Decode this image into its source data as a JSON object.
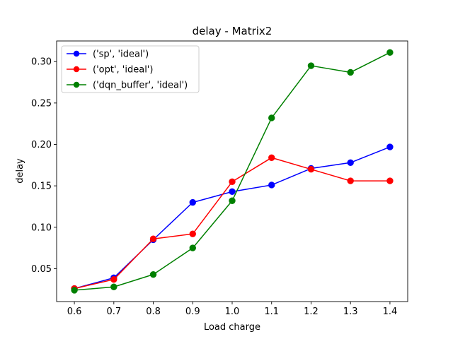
{
  "chart_data": {
    "type": "line",
    "title": "delay - Matrix2",
    "xlabel": "Load charge",
    "ylabel": "delay",
    "x": [
      0.6,
      0.7,
      0.8,
      0.9,
      1.0,
      1.1,
      1.2,
      1.3,
      1.4
    ],
    "xlim": [
      0.555,
      1.445
    ],
    "ylim": [
      0.0103,
      0.3249
    ],
    "xticks": [
      0.6,
      0.7,
      0.8,
      0.9,
      1.0,
      1.1,
      1.2,
      1.3,
      1.4
    ],
    "xtick_labels": [
      "0.6",
      "0.7",
      "0.8",
      "0.9",
      "1.0",
      "1.1",
      "1.2",
      "1.3",
      "1.4"
    ],
    "yticks": [
      0.05,
      0.1,
      0.15,
      0.2,
      0.25,
      0.3
    ],
    "ytick_labels": [
      "0.05",
      "0.10",
      "0.15",
      "0.20",
      "0.25",
      "0.30"
    ],
    "grid": false,
    "legend_position": "top-left",
    "series": [
      {
        "name": "('sp', 'ideal')",
        "color": "#0000ff",
        "values": [
          0.026,
          0.039,
          0.085,
          0.13,
          0.143,
          0.151,
          0.171,
          0.178,
          0.197
        ]
      },
      {
        "name": "('opt', 'ideal')",
        "color": "#ff0000",
        "values": [
          0.026,
          0.037,
          0.086,
          0.092,
          0.155,
          0.184,
          0.17,
          0.156,
          0.156
        ]
      },
      {
        "name": "('dqn_buffer', 'ideal')",
        "color": "#008000",
        "values": [
          0.024,
          0.028,
          0.043,
          0.075,
          0.132,
          0.232,
          0.295,
          0.287,
          0.311
        ]
      }
    ]
  }
}
